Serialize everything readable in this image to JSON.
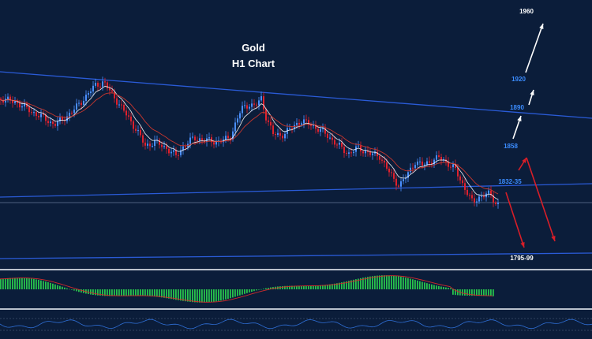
{
  "chart_data": {
    "type": "candlestick",
    "title": "Gold",
    "subtitle": "H1 Chart",
    "colors": {
      "background": "#0b1d3a",
      "trendline": "#2a5bd7",
      "bull_candle": "#4a8fff",
      "bear_candle": "#e0212d",
      "ma_fast": "#ffffff",
      "ma_slow": "#c8372e",
      "level_blue": "#3b8cff",
      "level_white": "#ffffff",
      "arrow_up": "#ffffff",
      "arrow_down": "#d81e28",
      "osc_hist": "#27c24c",
      "osc_signal": "#d12b2b",
      "rsi_line": "#2f6fd6",
      "panel_sep": "#b9c1cc"
    },
    "levels": [
      {
        "label": "1960",
        "color": "white"
      },
      {
        "label": "1920",
        "color": "blue"
      },
      {
        "label": "1890",
        "color": "blue"
      },
      {
        "label": "1858",
        "color": "blue"
      },
      {
        "label": "1832-35",
        "color": "blue"
      },
      {
        "label": "1795-99",
        "color": "white"
      }
    ],
    "projection": {
      "up": [
        "1858",
        "1890",
        "1920",
        "1960"
      ],
      "down": [
        "1832-35",
        "1795-99"
      ]
    }
  }
}
